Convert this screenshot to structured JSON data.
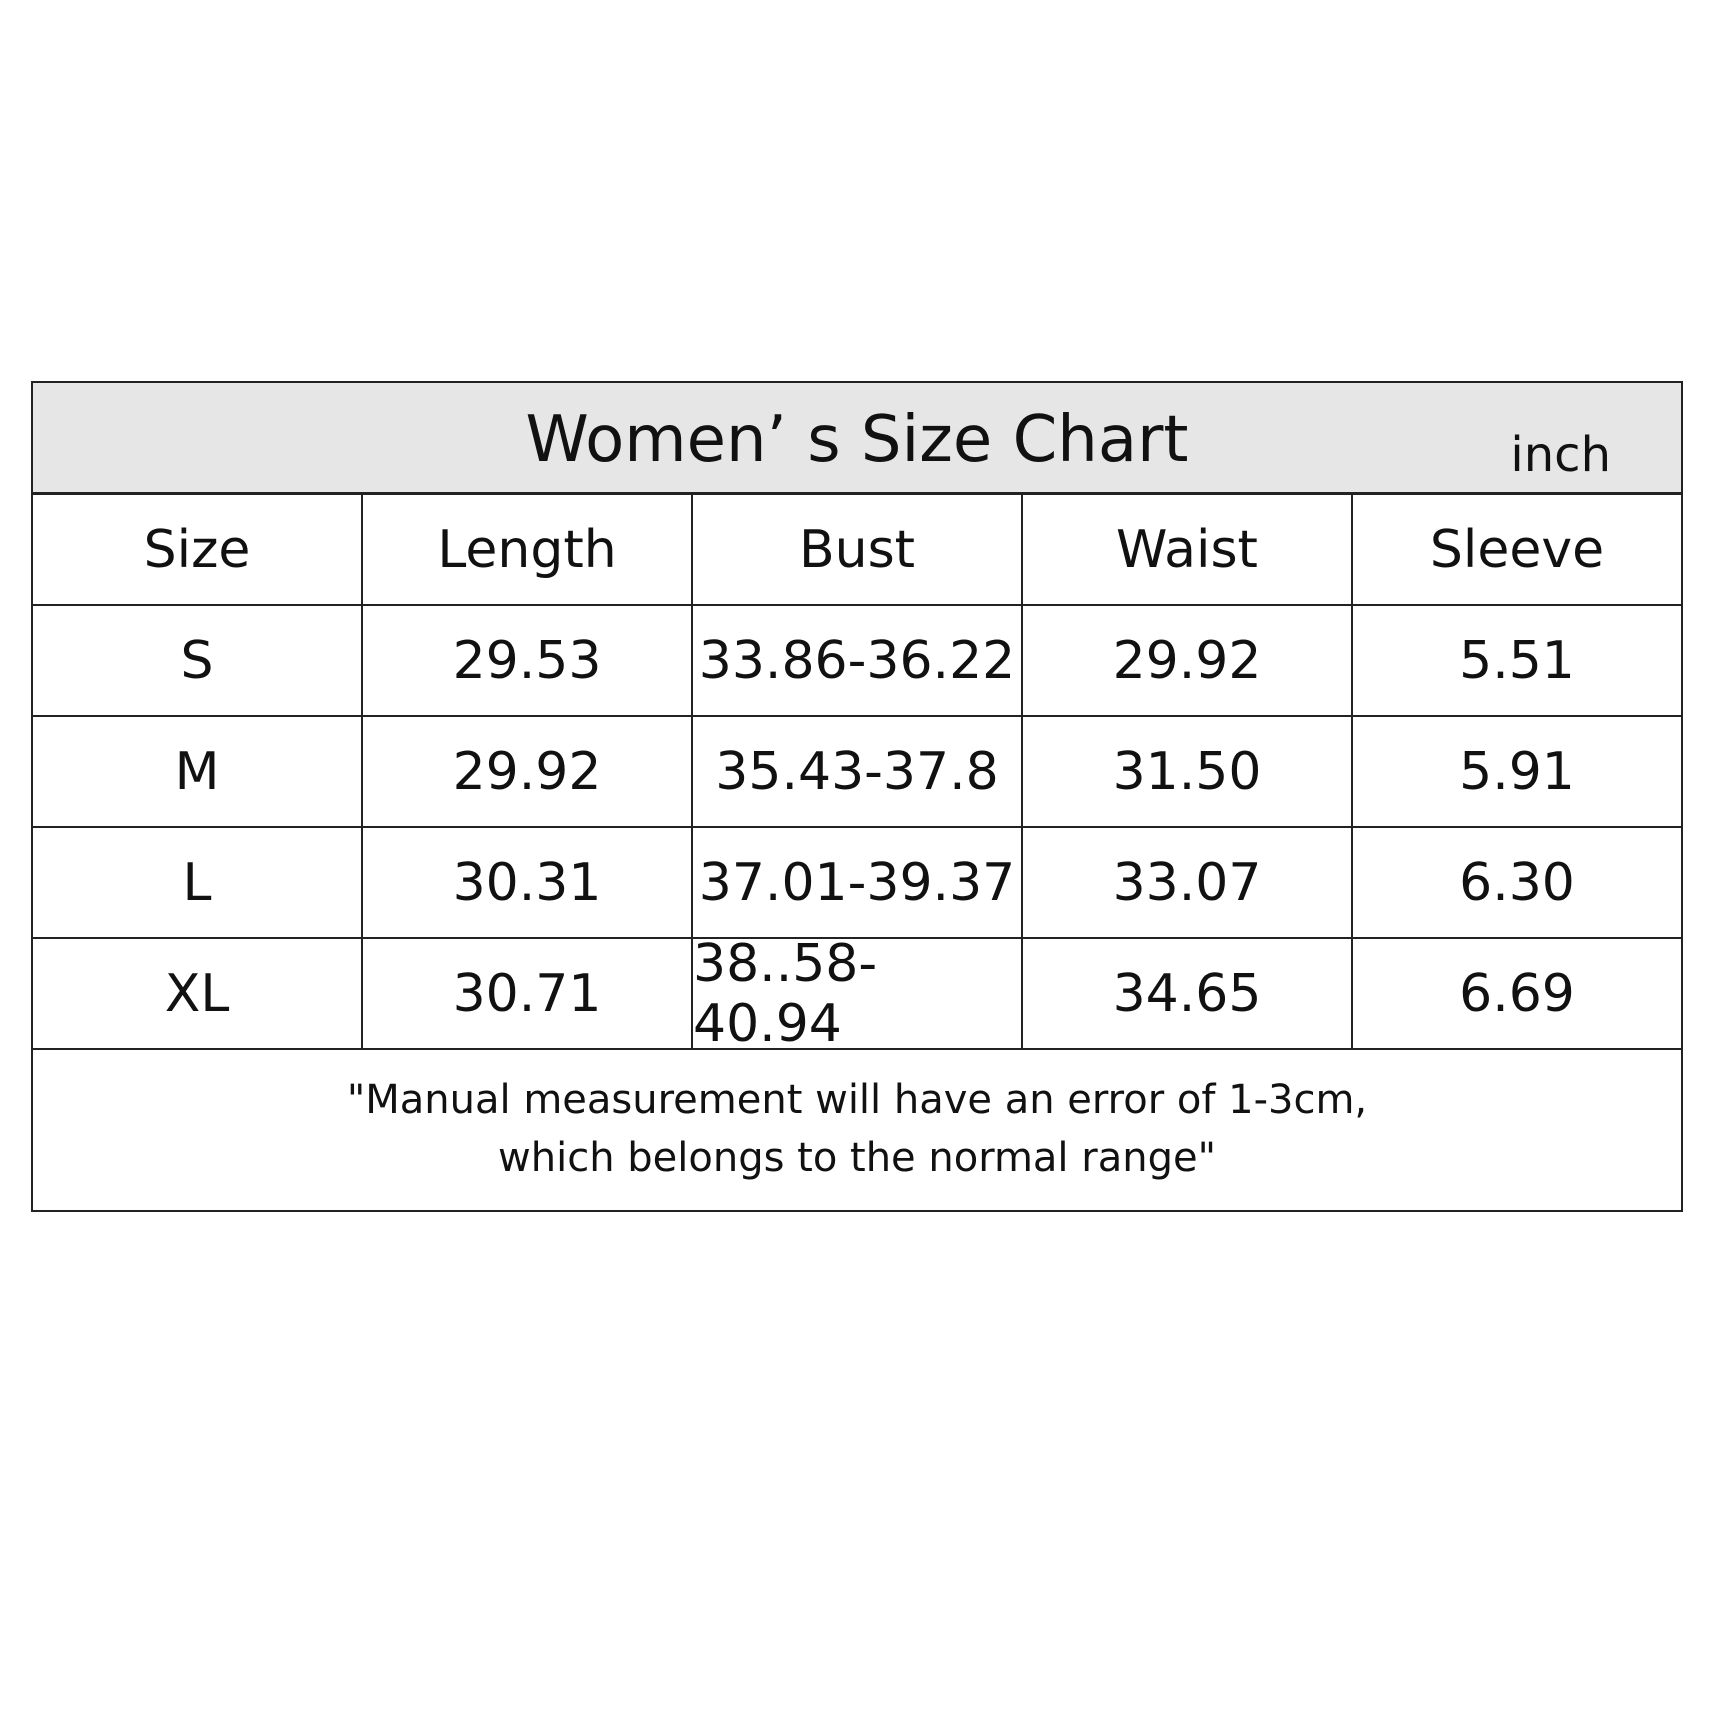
{
  "title": "Women’ s Size Chart",
  "unit": "inch",
  "table": {
    "headers": [
      "Size",
      "Length",
      "Bust",
      "Waist",
      "Sleeve"
    ],
    "rows": [
      [
        "S",
        "29.53",
        "33.86-36.22",
        "29.92",
        "5.51"
      ],
      [
        "M",
        "29.92",
        "35.43-37.8",
        "31.50",
        "5.91"
      ],
      [
        "L",
        "30.31",
        "37.01-39.37",
        "33.07",
        "6.30"
      ],
      [
        "XL",
        "30.71",
        "38..58-40.94",
        "34.65",
        "6.69"
      ]
    ]
  },
  "footnote": {
    "line1": "\"Manual measurement will have an error of 1-3cm,",
    "line2": "which belongs to the normal range\""
  }
}
